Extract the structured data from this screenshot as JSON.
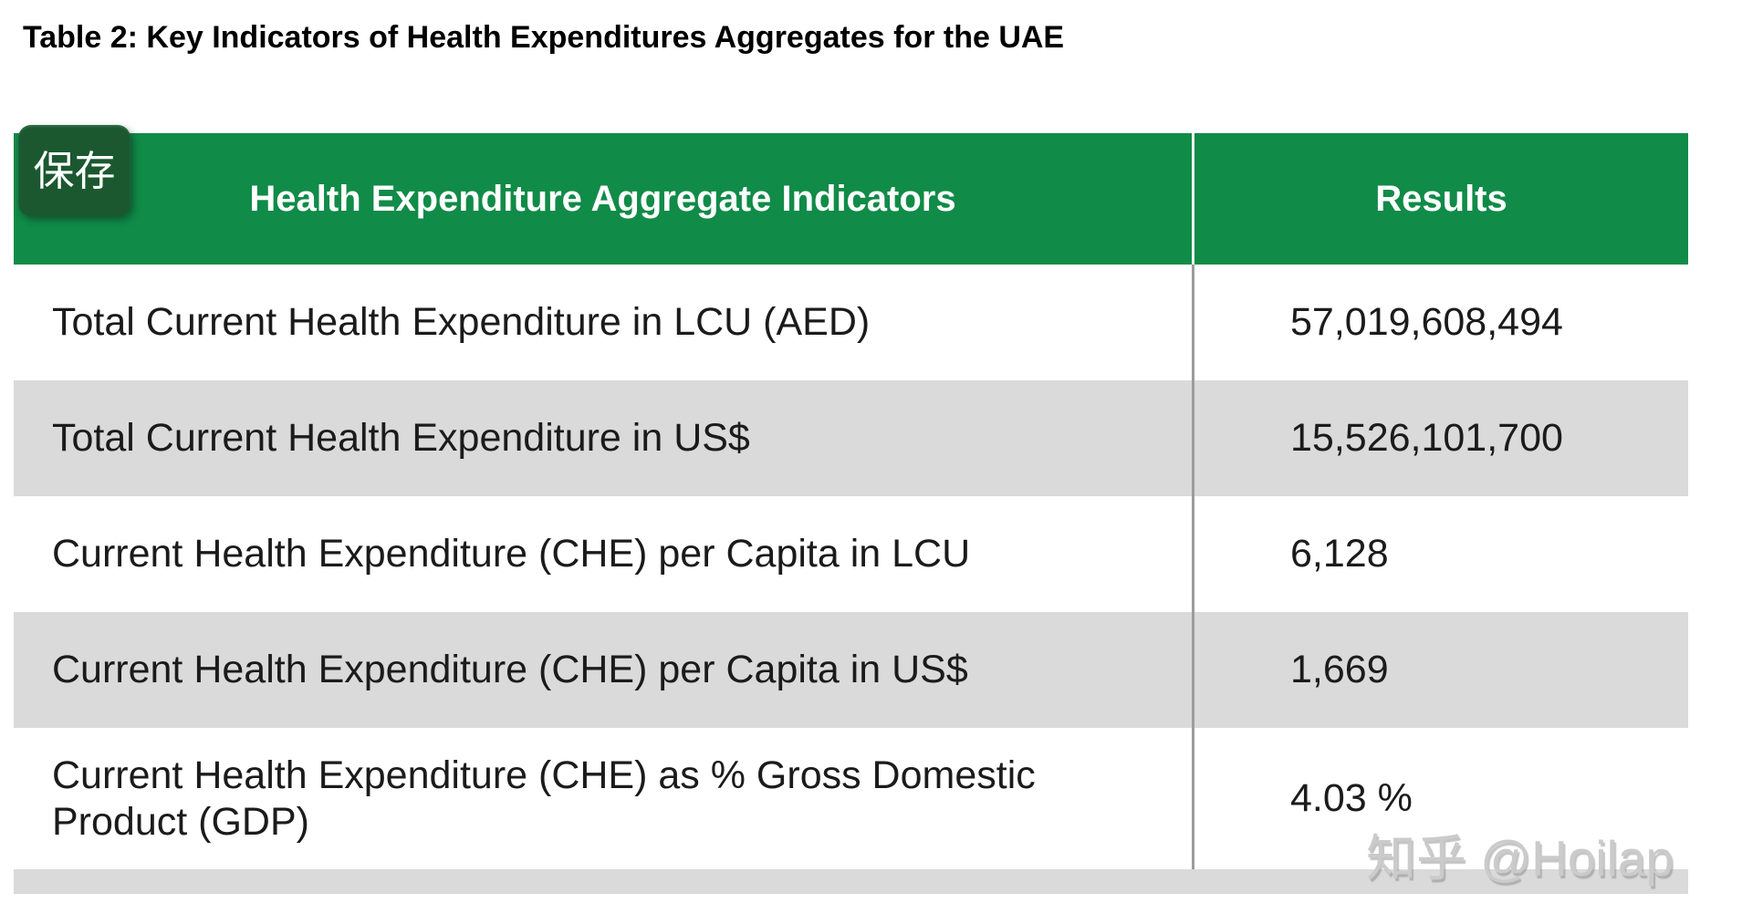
{
  "page": {
    "title": "Table 2: Key Indicators of Health Expenditures Aggregates for the UAE"
  },
  "save_button": {
    "label": "保存"
  },
  "table": {
    "columns": [
      {
        "label": "Health Expenditure Aggregate Indicators"
      },
      {
        "label": "Results"
      }
    ],
    "rows": [
      {
        "indicator": "Total Current Health Expenditure in LCU (AED)",
        "result": "57,019,608,494"
      },
      {
        "indicator": "Total Current Health Expenditure in US$",
        "result": "15,526,101,700"
      },
      {
        "indicator": "Current Health Expenditure (CHE) per Capita in LCU",
        "result": "6,128"
      },
      {
        "indicator": "Current Health Expenditure (CHE) per Capita in US$",
        "result": "1,669"
      },
      {
        "indicator": "Current Health Expenditure (CHE) as % Gross Domestic Product (GDP)",
        "result": "4.03 %"
      }
    ]
  },
  "watermark": {
    "text": "知乎 @Hoilap"
  },
  "colors": {
    "header_green": "#108b48",
    "save_button_green": "#1b5830",
    "row_stripe_gray": "#d9dad9",
    "divider_gray": "#9c9c9c"
  }
}
